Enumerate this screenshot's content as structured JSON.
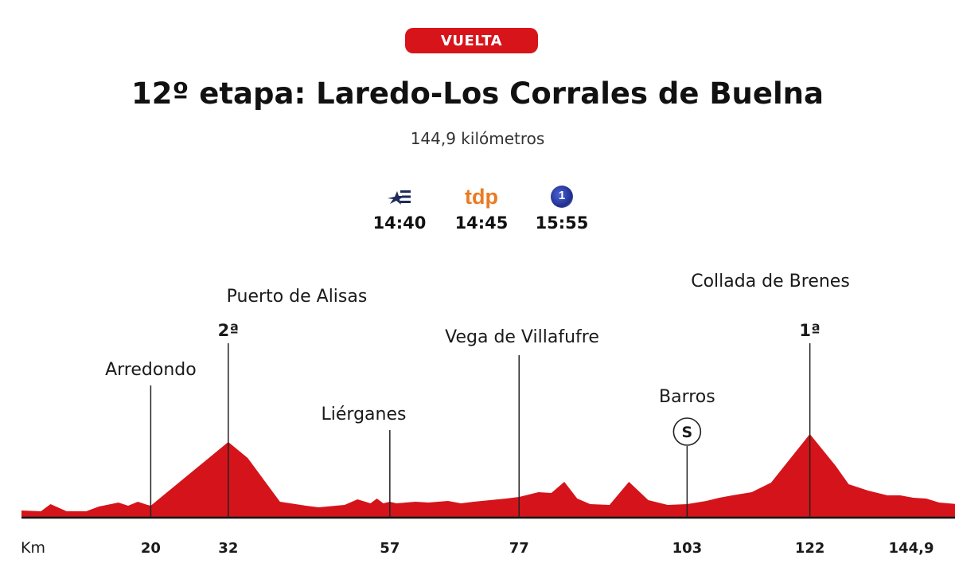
{
  "header": {
    "badge": "VUELTA",
    "title": "12º etapa: Laredo-Los Corrales de Buelna",
    "subtitle": "144,9 kilómetros"
  },
  "broadcasters": [
    {
      "icon": "eurosport-logo-icon",
      "time": "14:40",
      "color": "#1e2a5a"
    },
    {
      "icon": "tdp-logo-icon",
      "label": "tdp",
      "time": "14:45",
      "color": "#ec7a22"
    },
    {
      "icon": "la1-logo-icon",
      "label": "1",
      "time": "15:55",
      "color": "#1d2d8c"
    }
  ],
  "colors": {
    "badge": "#d7141a",
    "profile_fill": "#d4141a",
    "axis": "#111111"
  },
  "chart_data": {
    "type": "area",
    "xlabel": "Km",
    "xlim": [
      0,
      144.9
    ],
    "x_ticks": [
      {
        "km": 20,
        "label": "20"
      },
      {
        "km": 32,
        "label": "32"
      },
      {
        "km": 57,
        "label": "57"
      },
      {
        "km": 77,
        "label": "77"
      },
      {
        "km": 103,
        "label": "103"
      },
      {
        "km": 122,
        "label": "122"
      },
      {
        "km": 144.9,
        "label": "144,9"
      }
    ],
    "profile": [
      [
        0,
        9
      ],
      [
        3,
        8
      ],
      [
        4.5,
        17
      ],
      [
        7,
        8
      ],
      [
        10,
        8
      ],
      [
        12,
        14
      ],
      [
        15,
        19
      ],
      [
        16.5,
        15
      ],
      [
        18,
        20
      ],
      [
        19.5,
        16
      ],
      [
        20,
        15
      ],
      [
        32,
        95
      ],
      [
        35,
        75
      ],
      [
        40,
        20
      ],
      [
        44,
        15
      ],
      [
        46,
        13
      ],
      [
        50,
        16
      ],
      [
        52,
        23
      ],
      [
        54,
        18
      ],
      [
        55,
        24
      ],
      [
        56,
        18
      ],
      [
        57,
        20
      ],
      [
        58,
        18
      ],
      [
        61,
        20
      ],
      [
        63,
        19
      ],
      [
        66,
        21
      ],
      [
        68,
        18
      ],
      [
        70,
        20
      ],
      [
        75,
        24
      ],
      [
        77,
        26
      ],
      [
        80,
        32
      ],
      [
        82,
        31
      ],
      [
        84,
        45
      ],
      [
        86,
        24
      ],
      [
        88,
        17
      ],
      [
        91,
        16
      ],
      [
        94,
        45
      ],
      [
        97,
        22
      ],
      [
        100,
        16
      ],
      [
        103,
        17
      ],
      [
        106,
        21
      ],
      [
        108,
        25
      ],
      [
        110,
        28
      ],
      [
        113,
        32
      ],
      [
        116,
        44
      ],
      [
        122,
        105
      ],
      [
        126,
        65
      ],
      [
        128,
        42
      ],
      [
        131,
        34
      ],
      [
        134,
        28
      ],
      [
        136,
        28
      ],
      [
        138,
        25
      ],
      [
        140,
        24
      ],
      [
        142,
        19
      ],
      [
        144.9,
        17
      ]
    ],
    "markers": [
      {
        "name": "Arredondo",
        "km": 20
      },
      {
        "name": "Puerto de Alisas",
        "km": 32,
        "category": "2ª"
      },
      {
        "name": "Liérganes",
        "km": 57
      },
      {
        "name": "Vega de Villafufre",
        "km": 77
      },
      {
        "name": "Barros",
        "km": 103,
        "sprint": "S"
      },
      {
        "name": "Collada de Brenes",
        "km": 122,
        "category": "1ª"
      }
    ]
  }
}
